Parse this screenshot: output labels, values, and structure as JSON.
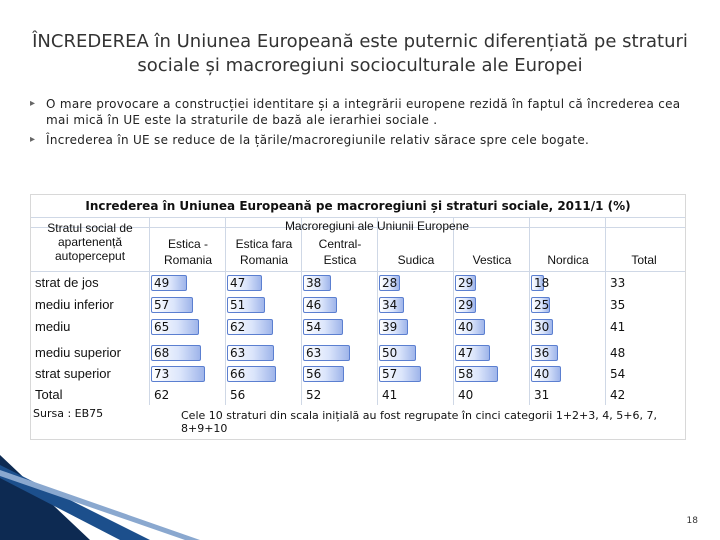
{
  "slide": {
    "title": "ÎNCREDEREA în Uniunea Europeană este puternic diferențiată pe straturi sociale și macroregiuni socioculturale ale Europei",
    "bullets": [
      "O mare provocare a construcției identitare și a integrării europene rezidă în faptul că încrederea cea mai mică în UE este la straturile de bază ale ierarhiei sociale .",
      "Încrederea în UE se reduce de la țările/macroregiunile relativ sărace spre cele bogate."
    ],
    "slide_number": "18"
  },
  "table": {
    "title": "Increderea în Uniunea Europeană pe macroregiuni și straturi sociale, 2011/1 (%)",
    "row_header": "Stratul social de apartenență autopercepu t",
    "row_header_lines": [
      "Stratul social de",
      "apartenență",
      "autoperceput"
    ],
    "group_header": "Macroregiuni ale Uniunii Europene",
    "columns": [
      {
        "line1": "Estica -",
        "line2": "Romania"
      },
      {
        "line1": "Estica fara",
        "line2": "Romania"
      },
      {
        "line1": "Central-",
        "line2": "Estica"
      },
      {
        "line1": "",
        "line2": "Sudica"
      },
      {
        "line1": "",
        "line2": "Vestica"
      },
      {
        "line1": "",
        "line2": "Nordica"
      },
      {
        "line1": "",
        "line2": "Total"
      }
    ],
    "rows": [
      {
        "label": "strat de jos",
        "values": [
          "49",
          "47",
          "38",
          "28",
          "29",
          "18",
          "33"
        ]
      },
      {
        "label": "mediu inferior",
        "values": [
          "57",
          "51",
          "46",
          "34",
          "29",
          "25",
          "35"
        ]
      },
      {
        "label": "mediu",
        "values": [
          "65",
          "62",
          "54",
          "39",
          "40",
          "30",
          "41"
        ]
      },
      {
        "label": "mediu superior",
        "values": [
          "68",
          "63",
          "63",
          "50",
          "47",
          "36",
          "48"
        ]
      },
      {
        "label": "strat superior",
        "values": [
          "73",
          "66",
          "56",
          "57",
          "58",
          "40",
          "54"
        ]
      },
      {
        "label": "Total",
        "values": [
          "62",
          "56",
          "52",
          "41",
          "40",
          "31",
          "42"
        ]
      }
    ],
    "source": "Sursa : EB75",
    "footnote": "Cele 10 straturi din scala inițială au fost regrupate în cinci categorii 1+2+3, 4, 5+6, 7, 8+9+10"
  }
}
